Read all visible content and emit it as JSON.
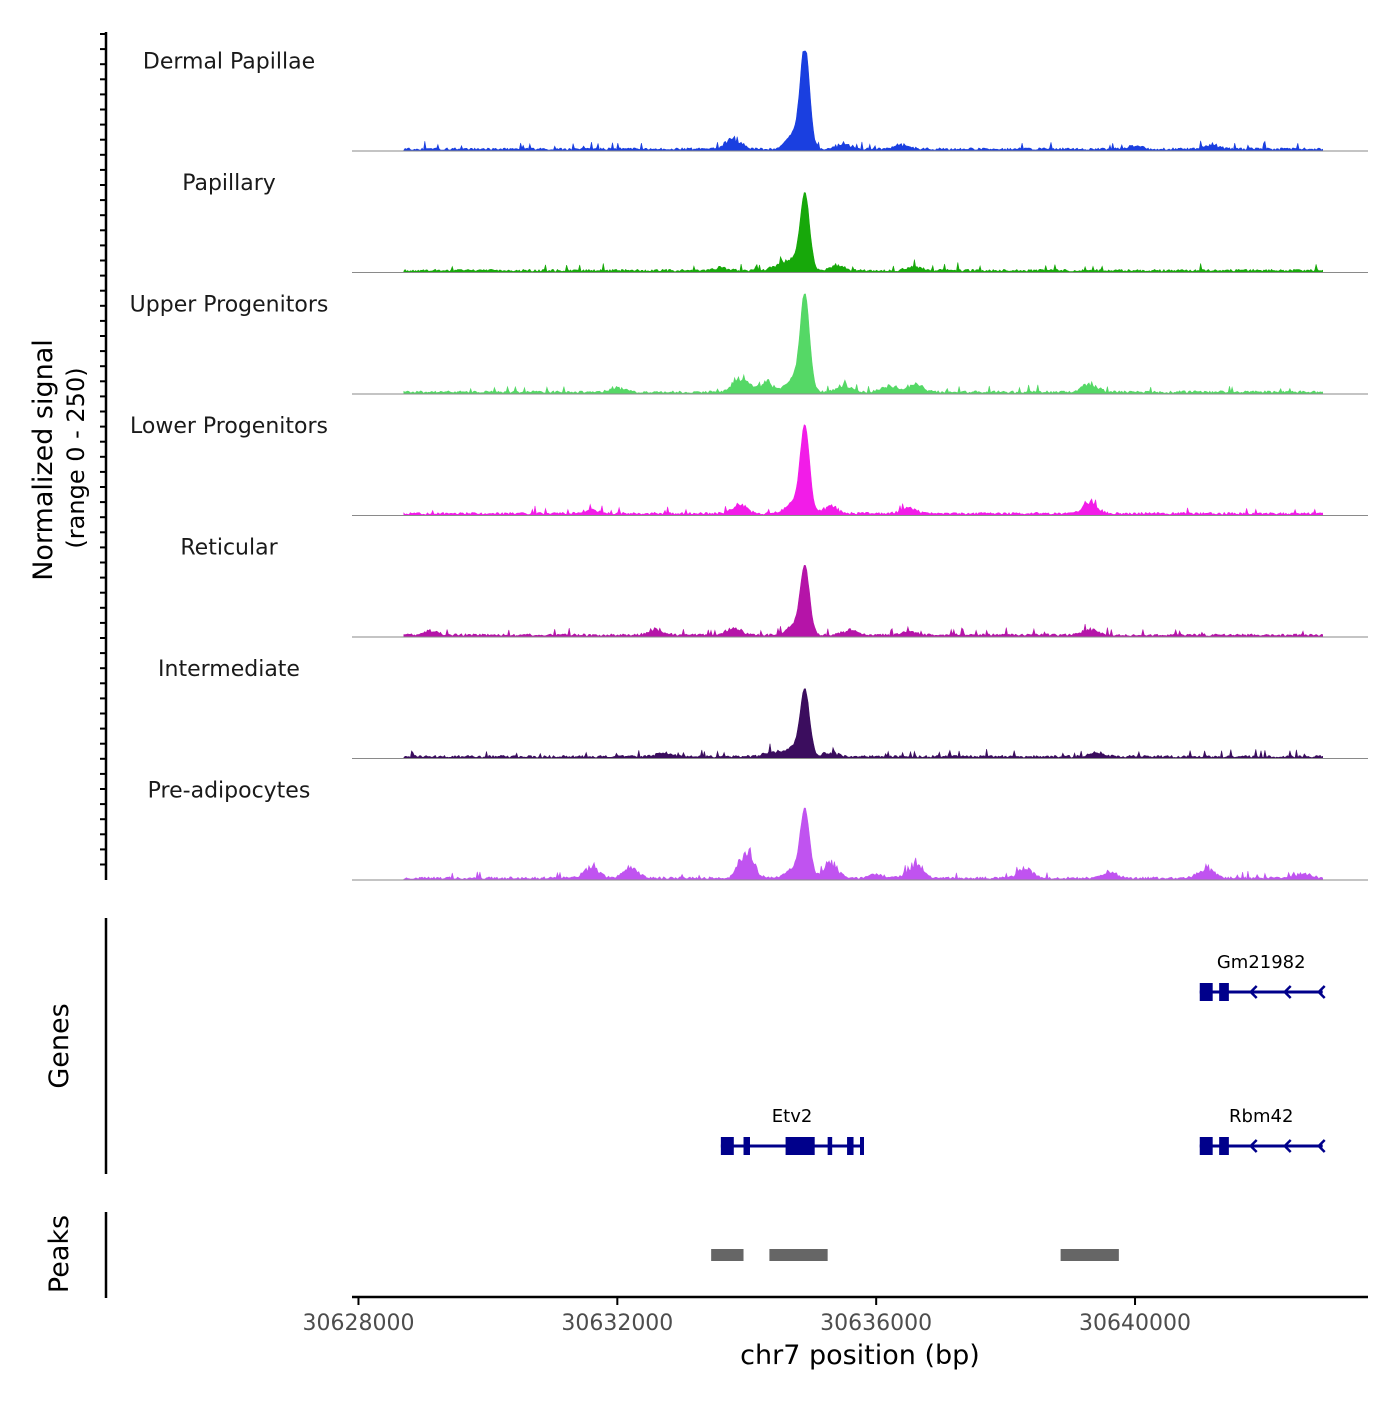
{
  "chart_data": {
    "type": "area",
    "title": "",
    "ylabel": "Normalized signal",
    "ylabel_range": "(range 0 - 250)",
    "ylim": [
      0,
      250
    ],
    "xlabel": "chr7 position (bp)",
    "xlim": [
      30627900,
      30643600
    ],
    "x_ticks": [
      30628000,
      30632000,
      30636000,
      30640000
    ],
    "x_tick_labels": [
      "30628000",
      "30632000",
      "30636000",
      "30640000"
    ],
    "tracks": [
      {
        "name": "Dermal Papillae",
        "color": "#1a3fe0",
        "peak": {
          "center": 30634900,
          "height": 250
        },
        "bumps": [
          [
            30633800,
            30
          ],
          [
            30635500,
            14
          ],
          [
            30636400,
            12
          ],
          [
            30641200,
            12
          ],
          [
            30640000,
            8
          ]
        ]
      },
      {
        "name": "Papillary",
        "color": "#17a80a",
        "peak": {
          "center": 30634900,
          "height": 185
        },
        "bumps": [
          [
            30634500,
            16
          ],
          [
            30635400,
            14
          ],
          [
            30636600,
            10
          ],
          [
            30633600,
            8
          ]
        ]
      },
      {
        "name": "Upper Progenitors",
        "color": "#55d866",
        "peak": {
          "center": 30634900,
          "height": 235
        },
        "bumps": [
          [
            30633900,
            40
          ],
          [
            30634300,
            28
          ],
          [
            30635500,
            20
          ],
          [
            30636200,
            18
          ],
          [
            30636600,
            24
          ],
          [
            30639300,
            22
          ],
          [
            30632000,
            12
          ]
        ]
      },
      {
        "name": "Lower Progenitors",
        "color": "#f21ce8",
        "peak": {
          "center": 30634900,
          "height": 210
        },
        "bumps": [
          [
            30633900,
            24
          ],
          [
            30635300,
            20
          ],
          [
            30636500,
            16
          ],
          [
            30639300,
            34
          ],
          [
            30631600,
            10
          ]
        ]
      },
      {
        "name": "Reticular",
        "color": "#b514a8",
        "peak": {
          "center": 30634900,
          "height": 165
        },
        "bumps": [
          [
            30633800,
            18
          ],
          [
            30632600,
            16
          ],
          [
            30635600,
            14
          ],
          [
            30636500,
            10
          ],
          [
            30639300,
            16
          ],
          [
            30629100,
            12
          ]
        ]
      },
      {
        "name": "Intermediate",
        "color": "#3b0d5e",
        "peak": {
          "center": 30634900,
          "height": 160
        },
        "bumps": [
          [
            30634400,
            14
          ],
          [
            30635300,
            12
          ],
          [
            30632700,
            10
          ],
          [
            30639400,
            12
          ]
        ]
      },
      {
        "name": "Pre-adipocytes",
        "color": "#c053f0",
        "peak": {
          "center": 30634900,
          "height": 165
        },
        "bumps": [
          [
            30634000,
            70
          ],
          [
            30635300,
            40
          ],
          [
            30636600,
            40
          ],
          [
            30631600,
            30
          ],
          [
            30632200,
            30
          ],
          [
            30638300,
            24
          ],
          [
            30641100,
            28
          ],
          [
            30639600,
            18
          ],
          [
            30642600,
            12
          ],
          [
            30636000,
            10
          ]
        ]
      }
    ],
    "genes": [
      {
        "name": "Gm21982",
        "start": 30641000,
        "end": 30642900,
        "strand": "-",
        "exons": [
          [
            30641000,
            30641200
          ],
          [
            30641300,
            30641450
          ]
        ]
      },
      {
        "name": "Etv2",
        "start": 30633600,
        "end": 30635800,
        "strand": "-",
        "exons": [
          [
            30633600,
            30633800
          ],
          [
            30633950,
            30634050
          ],
          [
            30634600,
            30635050
          ],
          [
            30635250,
            30635320
          ],
          [
            30635550,
            30635650
          ],
          [
            30635750,
            30635800
          ]
        ]
      },
      {
        "name": "Rbm42",
        "start": 30641000,
        "end": 30642900,
        "strand": "-",
        "exons": [
          [
            30641000,
            30641200
          ],
          [
            30641300,
            30641450
          ]
        ]
      }
    ],
    "genes_label": "Genes",
    "gene_color": "#00008b",
    "peaks_label": "Peaks",
    "peaks": [
      [
        30633450,
        30633950
      ],
      [
        30634350,
        30635250
      ],
      [
        30638850,
        30639750
      ]
    ],
    "peak_color": "#666666"
  }
}
